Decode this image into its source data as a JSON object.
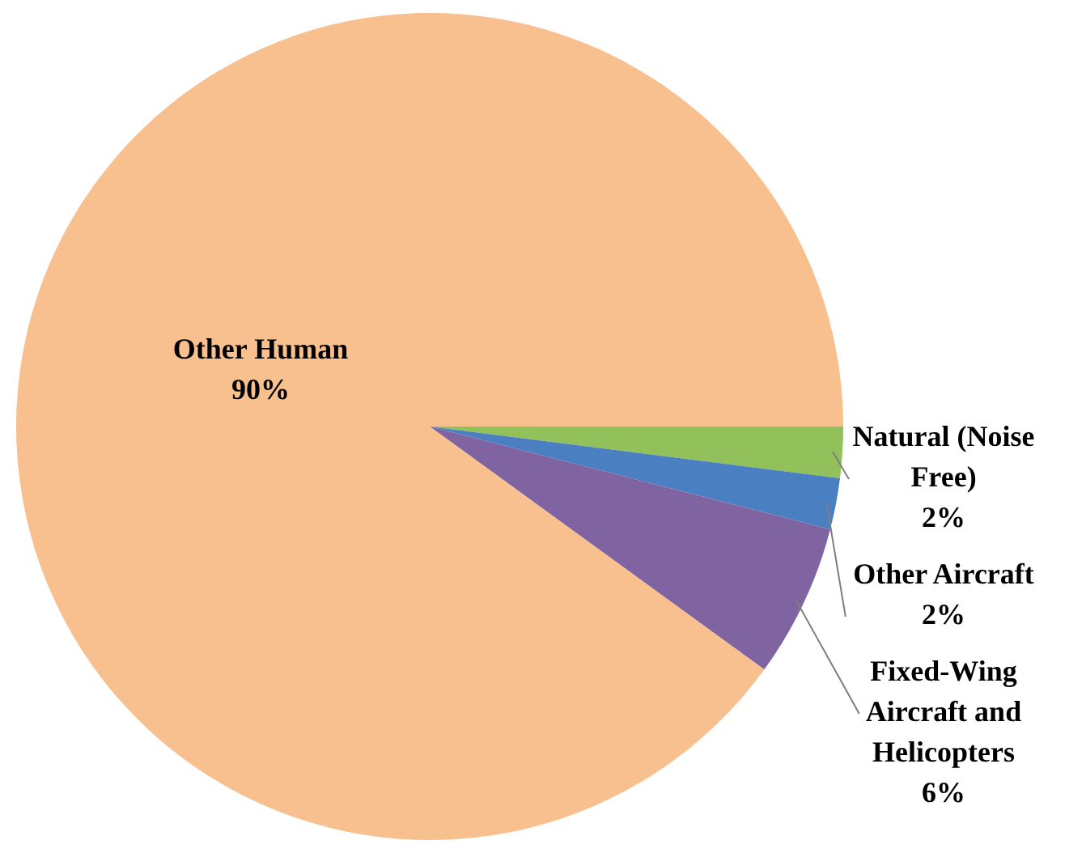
{
  "chart_data": {
    "type": "pie",
    "categories": [
      "Natural (Noise Free)",
      "Other Aircraft",
      "Fixed-Wing Aircraft and Helicopters",
      "Other Human"
    ],
    "values": [
      2,
      2,
      6,
      90
    ],
    "value_labels": [
      "2%",
      "2%",
      "6%",
      "90%"
    ],
    "colors": [
      "#92c05a",
      "#4a7fc1",
      "#8064a2",
      "#f9c08f"
    ],
    "legend": false
  }
}
